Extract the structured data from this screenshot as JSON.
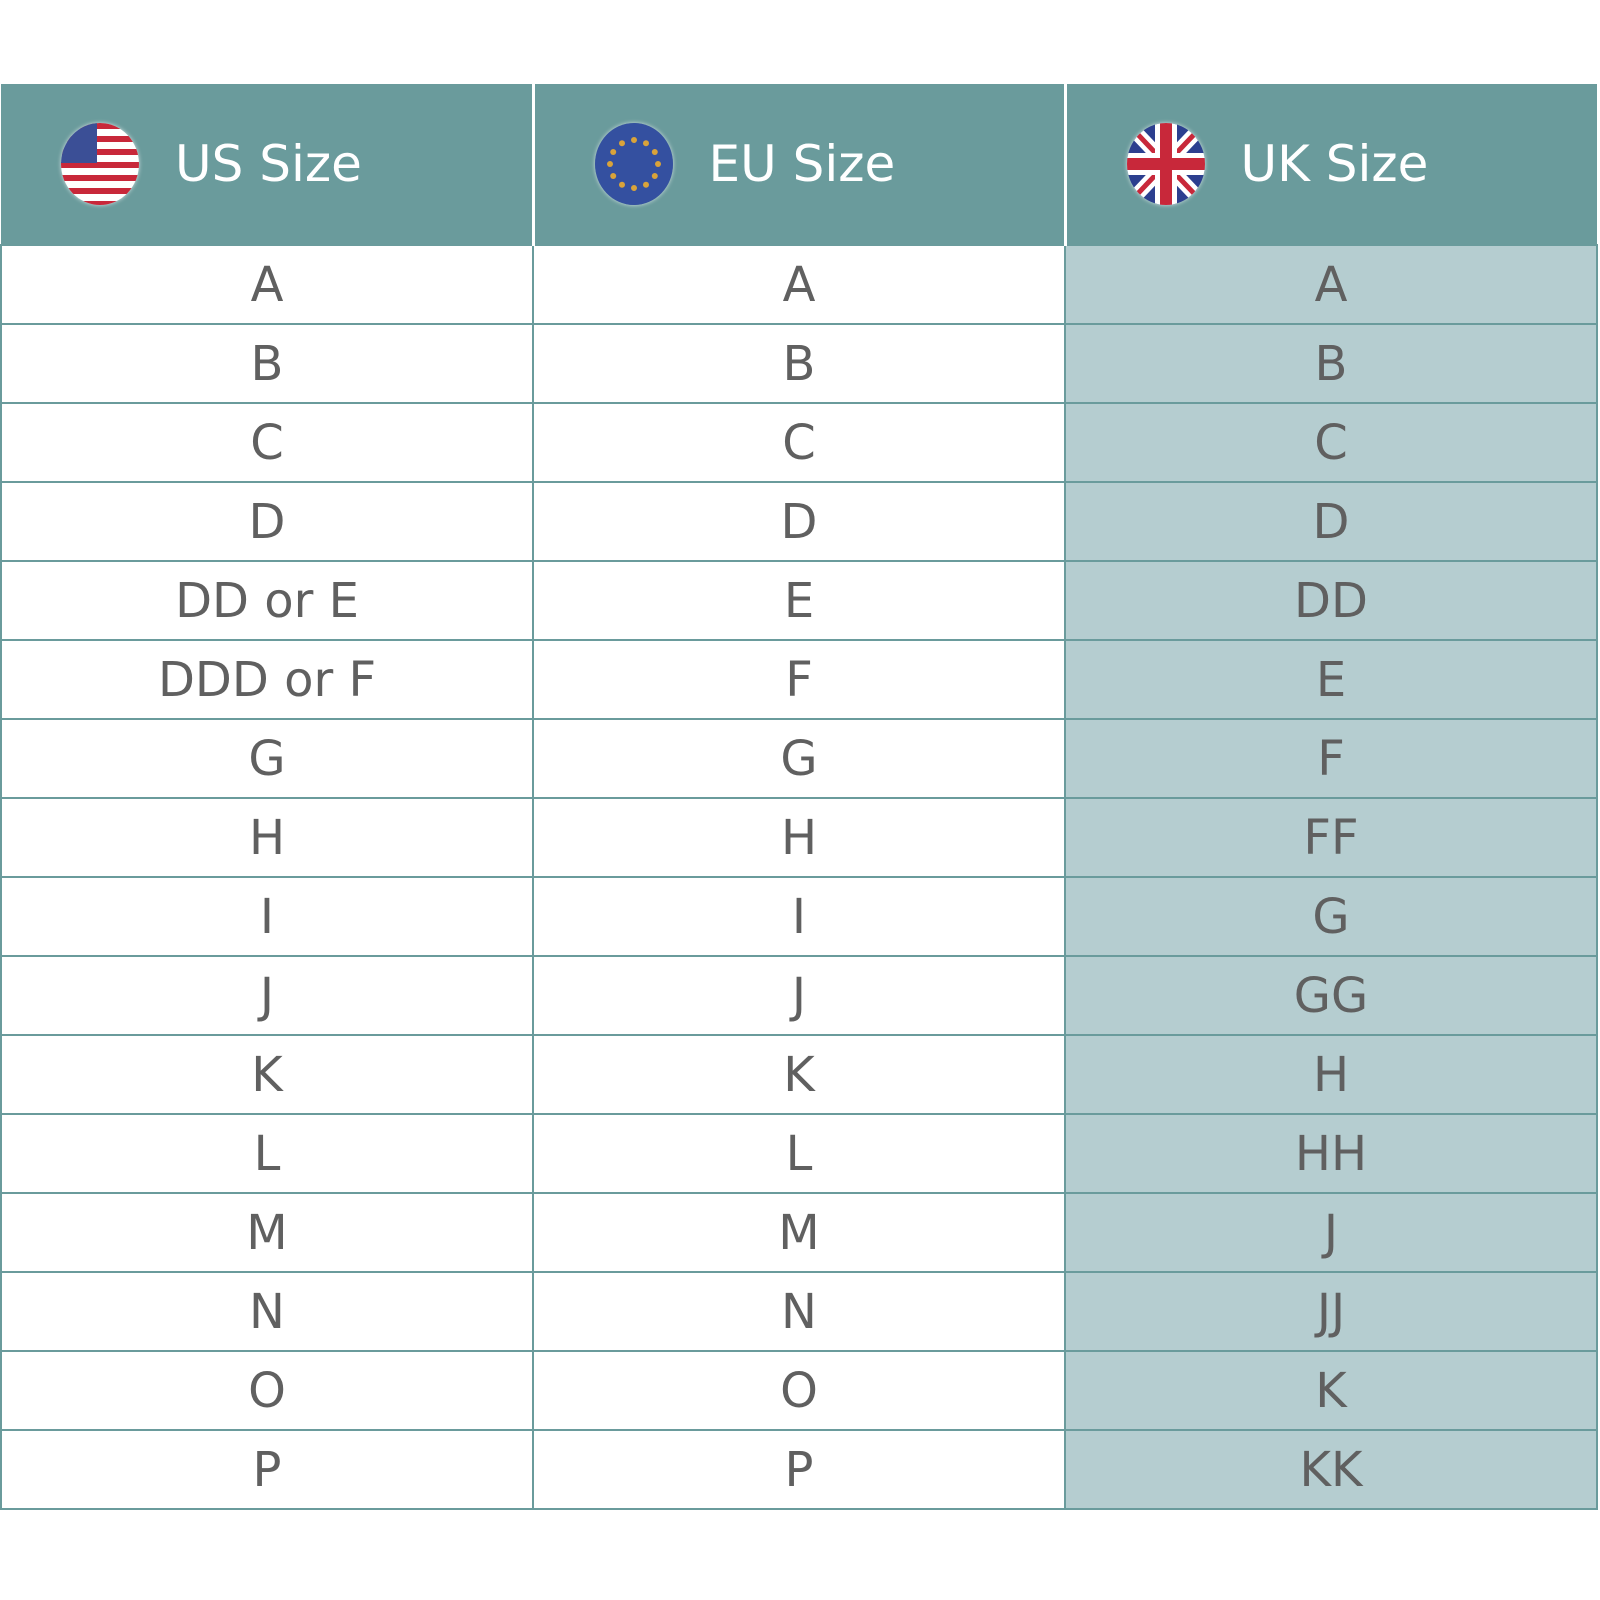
{
  "colors": {
    "header": "#6a9b9c",
    "uk_fill": "#b5cdd0",
    "text": "#606060"
  },
  "headers": [
    {
      "label": "US Size",
      "icon": "us-flag-icon"
    },
    {
      "label": "EU Size",
      "icon": "eu-flag-icon"
    },
    {
      "label": "UK Size",
      "icon": "uk-flag-icon"
    }
  ],
  "rows": [
    {
      "us": "A",
      "eu": "A",
      "uk": "A"
    },
    {
      "us": "B",
      "eu": "B",
      "uk": "B"
    },
    {
      "us": "C",
      "eu": "C",
      "uk": "C"
    },
    {
      "us": "D",
      "eu": "D",
      "uk": "D"
    },
    {
      "us": "DD or E",
      "eu": "E",
      "uk": "DD"
    },
    {
      "us": "DDD or F",
      "eu": "F",
      "uk": "E"
    },
    {
      "us": "G",
      "eu": "G",
      "uk": "F"
    },
    {
      "us": "H",
      "eu": "H",
      "uk": "FF"
    },
    {
      "us": "I",
      "eu": "I",
      "uk": "G"
    },
    {
      "us": "J",
      "eu": "J",
      "uk": "GG"
    },
    {
      "us": "K",
      "eu": "K",
      "uk": "H"
    },
    {
      "us": "L",
      "eu": "L",
      "uk": "HH"
    },
    {
      "us": "M",
      "eu": "M",
      "uk": "J"
    },
    {
      "us": "N",
      "eu": "N",
      "uk": "JJ"
    },
    {
      "us": "O",
      "eu": "O",
      "uk": "K"
    },
    {
      "us": "P",
      "eu": "P",
      "uk": "KK"
    }
  ]
}
